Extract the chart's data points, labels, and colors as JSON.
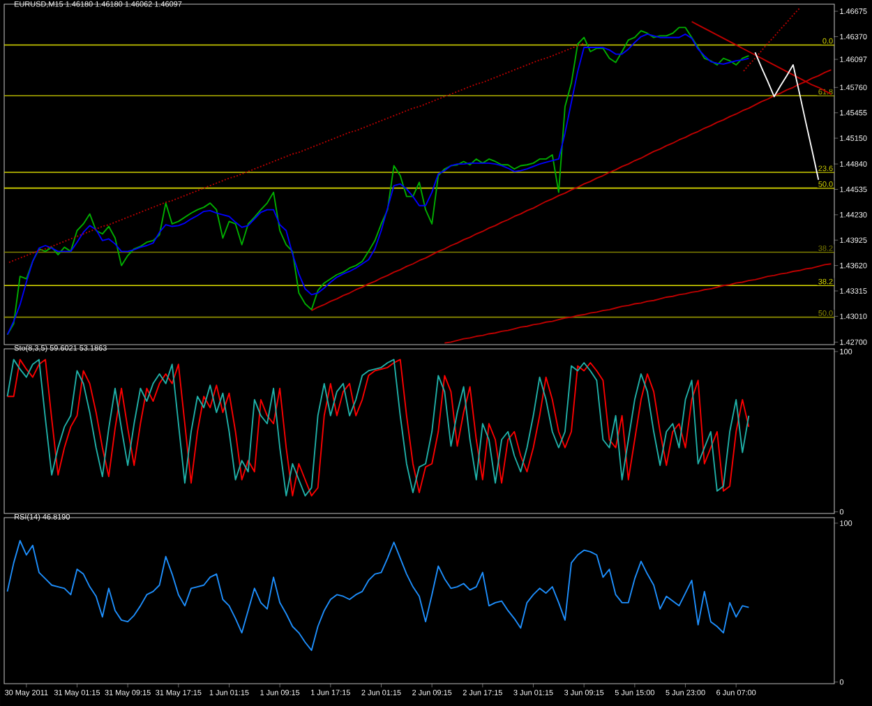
{
  "chart_data": [
    {
      "type": "line",
      "title": "EURUSD,M15  1.46180 1.46180 1.46062 1.46097",
      "tick_labels": "y",
      "categories": [
        null,
        null,
        null,
        null,
        null,
        null,
        null,
        null,
        null,
        null,
        null,
        null,
        null,
        null,
        null,
        null,
        null,
        null,
        null,
        null,
        null,
        null,
        null,
        null,
        null,
        null,
        null,
        null,
        null,
        null,
        null,
        null,
        null,
        null,
        null,
        null,
        null,
        null,
        null,
        null,
        null,
        null,
        null,
        null,
        null,
        null,
        null,
        null,
        null,
        null,
        null,
        null,
        null,
        null,
        null,
        null,
        null,
        null,
        null,
        null,
        null,
        null,
        null,
        null,
        null,
        null,
        null,
        null,
        null,
        null,
        null,
        null,
        null,
        null,
        null,
        null,
        null,
        null,
        null,
        null,
        null,
        null,
        null,
        null,
        null,
        null,
        null,
        null,
        null,
        null,
        null,
        null,
        null,
        null,
        null,
        null,
        null,
        null,
        null,
        null,
        null,
        null,
        null,
        null,
        null,
        null,
        null,
        null,
        null,
        null,
        null,
        null,
        null,
        null,
        null,
        null,
        null,
        null,
        null,
        null,
        null,
        null,
        null,
        null,
        null,
        null,
        null,
        null,
        null,
        null,
        null
      ],
      "ylim": [
        1.4267,
        1.4676
      ],
      "yticks": [
        {
          "value": 1.46675,
          "label": "1.46675"
        },
        {
          "value": 1.4637,
          "label": "1.46370"
        },
        {
          "value": 1.46097,
          "label": "1.46097"
        },
        {
          "value": 1.4576,
          "label": "1.45760"
        },
        {
          "value": 1.45455,
          "label": "1.45455"
        },
        {
          "value": 1.4515,
          "label": "1.45150"
        },
        {
          "value": 1.4484,
          "label": "1.44840"
        },
        {
          "value": 1.44535,
          "label": "1.44535"
        },
        {
          "value": 1.4423,
          "label": "1.44230"
        },
        {
          "value": 1.43925,
          "label": "1.43925"
        },
        {
          "value": 1.4362,
          "label": "1.43620"
        },
        {
          "value": 1.43315,
          "label": "1.43315"
        },
        {
          "value": 1.4301,
          "label": "1.43010"
        },
        {
          "value": 1.427,
          "label": "1.42700"
        }
      ],
      "ref_lines": [
        {
          "axis": "y",
          "value": 1.4627,
          "color": "#e0e000"
        },
        {
          "axis": "y",
          "value": 1.4566,
          "color": "#b0b000"
        },
        {
          "axis": "y",
          "value": 1.4474,
          "color": "#d0d000"
        },
        {
          "axis": "y",
          "value": 1.4455,
          "color": "#e0e000"
        },
        {
          "axis": "y",
          "value": 1.4378,
          "color": "#808000"
        },
        {
          "axis": "y",
          "value": 1.4338,
          "color": "#e0e000"
        },
        {
          "axis": "y",
          "value": 1.43,
          "color": "#909000"
        }
      ],
      "annotations": [
        {
          "text": "0.0",
          "y": 1.4627
        },
        {
          "text": "61.8",
          "y": 1.4566
        },
        {
          "text": "23.6",
          "y": 1.4474
        },
        {
          "text": "50.0",
          "y": 1.4455
        },
        {
          "text": "38.2",
          "y": 1.4378
        },
        {
          "text": "38.2",
          "y": 1.4338
        },
        {
          "text": "50.0",
          "y": 1.43
        }
      ],
      "series": [
        {
          "color": "#00b000",
          "values": [
            1.4279,
            1.4292,
            1.4349,
            1.4346,
            1.4367,
            1.4382,
            1.4379,
            1.4384,
            1.4375,
            1.4384,
            1.4379,
            1.4404,
            1.4412,
            1.4424,
            1.4404,
            1.44,
            1.4409,
            1.4395,
            1.4362,
            1.4374,
            1.4382,
            1.4385,
            1.439,
            1.4392,
            1.4399,
            1.4437,
            1.4412,
            1.4415,
            1.442,
            1.4425,
            1.4429,
            1.4432,
            1.4437,
            1.4429,
            1.4395,
            1.4415,
            1.4412,
            1.4387,
            1.4412,
            1.442,
            1.4429,
            1.4437,
            1.445,
            1.4404,
            1.4387,
            1.4379,
            1.4329,
            1.4316,
            1.4309,
            1.4332,
            1.4341,
            1.4346,
            1.4351,
            1.4354,
            1.4359,
            1.4362,
            1.4367,
            1.4379,
            1.4392,
            1.4412,
            1.4429,
            1.4482,
            1.447,
            1.4445,
            1.4445,
            1.4462,
            1.4429,
            1.4412,
            1.447,
            1.4478,
            1.4482,
            1.4483,
            1.4487,
            1.4483,
            1.449,
            1.4485,
            1.449,
            1.4487,
            1.4483,
            1.4483,
            1.4478,
            1.4482,
            1.4483,
            1.4485,
            1.449,
            1.449,
            1.4495,
            1.445,
            1.4553,
            1.4581,
            1.4628,
            1.4636,
            1.4619,
            1.4623,
            1.4623,
            1.4611,
            1.4606,
            1.4619,
            1.4633,
            1.4636,
            1.4644,
            1.4641,
            1.4636,
            1.4638,
            1.4638,
            1.4641,
            1.4648,
            1.4648,
            1.4636,
            1.4624,
            1.4611,
            1.4608,
            1.4603,
            1.4611,
            1.4608,
            1.4603,
            1.4611,
            1.4614,
            null,
            null,
            null,
            null,
            null,
            null,
            null,
            null,
            null,
            null,
            null,
            null,
            null
          ]
        },
        {
          "color": "#0000ff",
          "values": [
            1.4279,
            1.4295,
            1.4315,
            1.4342,
            1.4367,
            1.4383,
            1.4386,
            1.4383,
            1.4379,
            1.4379,
            1.4379,
            1.439,
            1.4402,
            1.441,
            1.4405,
            1.4392,
            1.4394,
            1.4388,
            1.4379,
            1.4379,
            1.4381,
            1.4384,
            1.4386,
            1.4389,
            1.4402,
            1.4411,
            1.4409,
            1.441,
            1.4413,
            1.4418,
            1.4422,
            1.4427,
            1.4428,
            1.4425,
            1.4423,
            1.4421,
            1.4414,
            1.4408,
            1.441,
            1.4418,
            1.4426,
            1.4429,
            1.4429,
            1.4411,
            1.4404,
            1.4376,
            1.4352,
            1.4334,
            1.4327,
            1.4329,
            1.4335,
            1.4342,
            1.4348,
            1.4352,
            1.4355,
            1.4359,
            1.4364,
            1.4369,
            1.4382,
            1.4404,
            1.4431,
            1.4458,
            1.446,
            1.4454,
            1.4445,
            1.4434,
            1.4434,
            1.445,
            1.4472,
            1.4476,
            1.4482,
            1.4484,
            1.4484,
            1.4485,
            1.4485,
            1.4485,
            1.4485,
            1.4484,
            1.4482,
            1.4479,
            1.4475,
            1.4476,
            1.4478,
            1.4481,
            1.4484,
            1.4486,
            1.4488,
            1.449,
            1.4521,
            1.4558,
            1.4595,
            1.4624,
            1.4624,
            1.4624,
            1.4624,
            1.4621,
            1.4616,
            1.4616,
            1.4622,
            1.463,
            1.4637,
            1.464,
            1.4638,
            1.4636,
            1.4636,
            1.4636,
            1.4636,
            1.464,
            1.4635,
            1.4622,
            1.4614,
            1.4607,
            1.4605,
            1.4604,
            1.4606,
            1.4608,
            1.4609,
            1.4611,
            null,
            null,
            null,
            null,
            null,
            null,
            null,
            null,
            null,
            null,
            null,
            null,
            null
          ]
        },
        {
          "color": "#c00000",
          "line_style": "dotted",
          "values": [
            1.4365,
            1.4368,
            1.4371,
            1.4374,
            1.4377,
            1.438,
            1.4382,
            1.4385,
            1.4388,
            1.4391,
            1.4394,
            1.4397,
            1.44,
            1.4403,
            1.4406,
            1.4409,
            1.4411,
            1.4414,
            1.4417,
            1.442,
            1.4423,
            1.4426,
            1.4429,
            1.4432,
            1.4435,
            1.4438,
            1.444,
            1.4443,
            1.4446,
            1.4449,
            1.4452,
            1.4455,
            1.4458,
            1.4461,
            1.4464,
            1.4467,
            1.4469,
            1.4472,
            1.4475,
            1.4478,
            1.4481,
            1.4484,
            1.4487,
            1.449,
            1.4493,
            1.4496,
            1.4498,
            1.4501,
            1.4504,
            1.4507,
            1.451,
            1.4513,
            1.4516,
            1.4519,
            1.4522,
            1.4524,
            1.4527,
            1.453,
            1.4533,
            1.4536,
            1.4539,
            1.4542,
            1.4545,
            1.4548,
            1.4551,
            1.4553,
            1.4556,
            1.4559,
            1.4562,
            1.4565,
            1.4568,
            1.4571,
            1.4574,
            1.4577,
            1.458,
            1.4582,
            1.4585,
            1.4588,
            1.4591,
            1.4594,
            1.4597,
            1.46,
            1.4603,
            1.4606,
            1.4609,
            1.4611,
            1.4614,
            1.4617,
            1.462,
            1.4623,
            1.4626,
            1.4629,
            null,
            null,
            null,
            null,
            null,
            null,
            null,
            null,
            null,
            null,
            null,
            null,
            null,
            null,
            null,
            null,
            null,
            null,
            null,
            null,
            null,
            null,
            null,
            null,
            null,
            null,
            null,
            null,
            null,
            null,
            null,
            null,
            null,
            null,
            null,
            null,
            null,
            null,
            null
          ]
        },
        {
          "color": "#c00000",
          "line_style": "dotted",
          "values": [
            null,
            null,
            null,
            null,
            null,
            null,
            null,
            null,
            null,
            null,
            null,
            null,
            null,
            null,
            null,
            null,
            null,
            null,
            null,
            null,
            null,
            null,
            null,
            null,
            null,
            null,
            null,
            null,
            null,
            null,
            null,
            null,
            null,
            null,
            null,
            null,
            null,
            null,
            null,
            null,
            null,
            null,
            null,
            null,
            null,
            null,
            null,
            null,
            null,
            null,
            null,
            null,
            null,
            null,
            null,
            null,
            null,
            null,
            null,
            null,
            null,
            null,
            null,
            null,
            null,
            null,
            null,
            null,
            null,
            null,
            null,
            null,
            null,
            null,
            null,
            null,
            null,
            null,
            null,
            null,
            null,
            null,
            null,
            null,
            null,
            null,
            null,
            null,
            null,
            null,
            null,
            null,
            null,
            null,
            null,
            null,
            null,
            null,
            null,
            null,
            null,
            null,
            null,
            null,
            null,
            null,
            null,
            null,
            null,
            null,
            null,
            null,
            null,
            null,
            null,
            null,
            1.4594,
            1.4603,
            1.4611,
            1.462,
            1.4629,
            1.4637,
            1.4646,
            1.4654,
            1.4663,
            1.4671,
            null,
            null,
            null,
            null,
            null
          ]
        },
        {
          "color": "#c00000",
          "values": [
            null,
            null,
            null,
            null,
            null,
            null,
            null,
            null,
            null,
            null,
            null,
            null,
            null,
            null,
            null,
            null,
            null,
            null,
            null,
            null,
            null,
            null,
            null,
            null,
            null,
            null,
            null,
            null,
            null,
            null,
            null,
            null,
            null,
            null,
            null,
            null,
            null,
            null,
            null,
            null,
            null,
            null,
            null,
            null,
            null,
            null,
            null,
            null,
            1.4308,
            1.4312,
            1.4315,
            1.4319,
            1.4322,
            1.4326,
            1.4329,
            1.4333,
            1.4336,
            1.434,
            1.4343,
            1.4347,
            1.435,
            1.4354,
            1.4357,
            1.4361,
            1.4364,
            1.4368,
            1.4371,
            1.4375,
            1.4379,
            1.4382,
            1.4386,
            1.4389,
            1.4393,
            1.4396,
            1.44,
            1.4403,
            1.4407,
            1.441,
            1.4414,
            1.4417,
            1.4421,
            1.4424,
            1.4428,
            1.4431,
            1.4435,
            1.4439,
            1.4442,
            1.4446,
            1.4449,
            1.4453,
            1.4456,
            1.446,
            1.4463,
            1.4467,
            1.447,
            1.4474,
            1.4477,
            1.4481,
            1.4484,
            1.4488,
            1.4491,
            1.4495,
            1.4499,
            1.4502,
            1.4506,
            1.4509,
            1.4513,
            1.4516,
            1.452,
            1.4523,
            1.4527,
            1.453,
            1.4534,
            1.4537,
            1.4541,
            1.4544,
            1.4548,
            1.4551,
            1.4555,
            1.4559,
            1.4562,
            1.4566,
            1.4569,
            1.4573,
            1.4576,
            1.458,
            1.4583,
            1.4587,
            1.459,
            1.4594,
            1.4597
          ]
        },
        {
          "color": "#c00000",
          "values": [
            null,
            null,
            null,
            null,
            null,
            null,
            null,
            null,
            null,
            null,
            null,
            null,
            null,
            null,
            null,
            null,
            null,
            null,
            null,
            null,
            null,
            null,
            null,
            null,
            null,
            null,
            null,
            null,
            null,
            null,
            null,
            null,
            null,
            null,
            null,
            null,
            null,
            null,
            null,
            null,
            null,
            null,
            null,
            null,
            null,
            null,
            null,
            null,
            null,
            null,
            null,
            null,
            null,
            null,
            null,
            null,
            null,
            null,
            null,
            null,
            null,
            null,
            null,
            null,
            null,
            null,
            null,
            null,
            null,
            1.4269,
            1.427,
            1.4272,
            1.4274,
            1.4275,
            1.4277,
            1.4278,
            1.428,
            1.4281,
            1.4283,
            1.4284,
            1.4286,
            1.4288,
            1.4289,
            1.4291,
            1.4292,
            1.4294,
            1.4295,
            1.4297,
            1.4299,
            1.43,
            1.4302,
            1.4303,
            1.4305,
            1.4306,
            1.4308,
            1.4309,
            1.4311,
            1.4313,
            1.4314,
            1.4316,
            1.4317,
            1.4319,
            1.432,
            1.4322,
            1.4324,
            1.4325,
            1.4327,
            1.4328,
            1.433,
            1.4331,
            1.4333,
            1.4334,
            1.4336,
            1.4338,
            1.4339,
            1.4341,
            1.4342,
            1.4344,
            1.4345,
            1.4347,
            1.4349,
            1.435,
            1.4352,
            1.4353,
            1.4355,
            1.4356,
            1.4358,
            1.4359,
            1.4361,
            1.4363,
            1.4364
          ]
        },
        {
          "color": "#c00000",
          "values": [
            null,
            null,
            null,
            null,
            null,
            null,
            null,
            null,
            null,
            null,
            null,
            null,
            null,
            null,
            null,
            null,
            null,
            null,
            null,
            null,
            null,
            null,
            null,
            null,
            null,
            null,
            null,
            null,
            null,
            null,
            null,
            null,
            null,
            null,
            null,
            null,
            null,
            null,
            null,
            null,
            null,
            null,
            null,
            null,
            null,
            null,
            null,
            null,
            null,
            null,
            null,
            null,
            null,
            null,
            null,
            null,
            null,
            null,
            null,
            null,
            null,
            null,
            null,
            null,
            null,
            null,
            null,
            null,
            null,
            null,
            null,
            null,
            null,
            null,
            null,
            null,
            null,
            null,
            null,
            null,
            null,
            null,
            null,
            null,
            null,
            null,
            null,
            null,
            null,
            null,
            null,
            null,
            null,
            null,
            null,
            null,
            null,
            null,
            null,
            null,
            null,
            null,
            null,
            null,
            null,
            null,
            null,
            null,
            1.4655,
            1.4651,
            1.4647,
            1.4643,
            1.4639,
            1.4635,
            1.4631,
            1.4627,
            1.4623,
            1.4619,
            1.4615,
            1.4611,
            1.4607,
            1.4603,
            1.4599,
            1.4595,
            1.4591,
            1.4587,
            1.4583,
            1.4579,
            1.4576,
            1.4572,
            1.4568
          ]
        },
        {
          "color": "#ffffff",
          "values": [
            null,
            null,
            null,
            null,
            null,
            null,
            null,
            null,
            null,
            null,
            null,
            null,
            null,
            null,
            null,
            null,
            null,
            null,
            null,
            null,
            null,
            null,
            null,
            null,
            null,
            null,
            null,
            null,
            null,
            null,
            null,
            null,
            null,
            null,
            null,
            null,
            null,
            null,
            null,
            null,
            null,
            null,
            null,
            null,
            null,
            null,
            null,
            null,
            null,
            null,
            null,
            null,
            null,
            null,
            null,
            null,
            null,
            null,
            null,
            null,
            null,
            null,
            null,
            null,
            null,
            null,
            null,
            null,
            null,
            null,
            null,
            null,
            null,
            null,
            null,
            null,
            null,
            null,
            null,
            null,
            null,
            null,
            null,
            null,
            null,
            null,
            null,
            null,
            null,
            null,
            null,
            null,
            null,
            null,
            null,
            null,
            null,
            null,
            null,
            null,
            null,
            null,
            null,
            null,
            null,
            null,
            null,
            null,
            null,
            null,
            null,
            null,
            null,
            null,
            null,
            null,
            null,
            null,
            1.4618,
            1.46,
            1.4583,
            1.4565,
            1.4578,
            1.459,
            1.4603,
            1.4569,
            1.4534,
            1.45,
            1.4465,
            null,
            null
          ]
        }
      ]
    },
    {
      "type": "line",
      "title": "Sto(8,3,5) 59.6021 53.1863",
      "tick_labels": "y",
      "categories": [
        null,
        null,
        null,
        null,
        null,
        null,
        null,
        null,
        null,
        null,
        null,
        null,
        null,
        null,
        null,
        null,
        null,
        null,
        null,
        null,
        null,
        null,
        null,
        null,
        null,
        null,
        null,
        null,
        null,
        null,
        null,
        null,
        null,
        null,
        null,
        null,
        null,
        null,
        null,
        null,
        null,
        null,
        null,
        null,
        null,
        null,
        null,
        null,
        null,
        null,
        null,
        null,
        null,
        null,
        null,
        null,
        null,
        null,
        null,
        null,
        null,
        null,
        null,
        null,
        null,
        null,
        null,
        null,
        null,
        null,
        null,
        null,
        null,
        null,
        null,
        null,
        null,
        null,
        null,
        null,
        null,
        null,
        null,
        null,
        null,
        null,
        null,
        null,
        null,
        null,
        null,
        null,
        null,
        null,
        null,
        null,
        null,
        null,
        null,
        null,
        null,
        null,
        null,
        null,
        null,
        null,
        null,
        null,
        null,
        null,
        null,
        null,
        null,
        null,
        null,
        null,
        null,
        null,
        null,
        null,
        null,
        null,
        null,
        null,
        null,
        null,
        null,
        null,
        null,
        null,
        null
      ],
      "ylim": [
        -1,
        101.7
      ],
      "yticks": [
        0,
        100
      ],
      "series": [
        {
          "color": "#ff0000",
          "values": [
            72,
            72,
            95,
            89,
            84,
            92,
            95,
            58,
            23,
            40,
            53,
            60,
            88,
            80,
            62,
            40,
            22,
            52,
            77,
            52,
            29,
            55,
            77,
            69,
            80,
            86,
            80,
            92,
            55,
            18,
            50,
            72,
            65,
            79,
            62,
            74,
            50,
            20,
            32,
            25,
            70,
            60,
            55,
            77,
            40,
            10,
            30,
            20,
            10,
            15,
            60,
            80,
            60,
            75,
            80,
            60,
            70,
            85,
            88,
            89,
            90,
            93,
            95,
            60,
            30,
            12,
            28,
            30,
            50,
            85,
            75,
            41,
            62,
            78,
            45,
            20,
            55,
            45,
            18,
            45,
            50,
            35,
            25,
            40,
            60,
            84,
            70,
            50,
            40,
            50,
            91,
            88,
            93,
            88,
            82,
            45,
            40,
            60,
            20,
            45,
            70,
            86,
            75,
            50,
            29,
            50,
            55,
            40,
            70,
            82,
            30,
            40,
            50,
            13,
            16,
            50,
            70,
            53,
            null,
            null,
            null,
            null,
            null,
            null,
            null,
            null,
            null,
            null,
            null,
            null,
            null
          ]
        },
        {
          "color": "#20b2aa",
          "values": [
            72,
            95,
            89,
            84,
            92,
            95,
            58,
            23,
            40,
            53,
            60,
            88,
            80,
            62,
            40,
            22,
            52,
            77,
            52,
            29,
            55,
            77,
            69,
            80,
            86,
            80,
            92,
            55,
            18,
            50,
            72,
            65,
            79,
            62,
            74,
            50,
            20,
            32,
            25,
            70,
            60,
            55,
            77,
            40,
            10,
            30,
            20,
            10,
            15,
            60,
            80,
            60,
            75,
            80,
            60,
            70,
            85,
            88,
            89,
            90,
            93,
            95,
            60,
            30,
            12,
            28,
            30,
            50,
            85,
            75,
            41,
            62,
            78,
            45,
            20,
            55,
            45,
            18,
            45,
            50,
            35,
            25,
            40,
            60,
            84,
            70,
            50,
            40,
            50,
            91,
            88,
            93,
            88,
            82,
            45,
            40,
            60,
            20,
            45,
            70,
            86,
            75,
            50,
            29,
            50,
            55,
            40,
            70,
            82,
            30,
            40,
            50,
            13,
            16,
            50,
            70,
            37,
            60,
            null,
            null,
            null,
            null,
            null,
            null,
            null,
            null,
            null,
            null,
            null,
            null,
            null
          ]
        }
      ]
    },
    {
      "type": "line",
      "title": "RSI(14) 46.8190",
      "categories": [
        null,
        null,
        null,
        "30 May 2011",
        null,
        null,
        null,
        null,
        null,
        null,
        null,
        "31 May 01:15",
        null,
        null,
        null,
        null,
        null,
        null,
        null,
        "31 May 09:15",
        null,
        null,
        null,
        null,
        null,
        null,
        null,
        "31 May 17:15",
        null,
        null,
        null,
        null,
        null,
        null,
        null,
        "1 Jun 01:15",
        null,
        null,
        null,
        null,
        null,
        null,
        null,
        "1 Jun 09:15",
        null,
        null,
        null,
        null,
        null,
        null,
        null,
        "1 Jun 17:15",
        null,
        null,
        null,
        null,
        null,
        null,
        null,
        "2 Jun 01:15",
        null,
        null,
        null,
        null,
        null,
        null,
        null,
        "2 Jun 09:15",
        null,
        null,
        null,
        null,
        null,
        null,
        null,
        "2 Jun 17:15",
        null,
        null,
        null,
        null,
        null,
        null,
        null,
        "3 Jun 01:15",
        null,
        null,
        null,
        null,
        null,
        null,
        null,
        "3 Jun 09:15",
        null,
        null,
        null,
        null,
        null,
        null,
        null,
        "5 Jun 15:00",
        null,
        null,
        null,
        null,
        null,
        null,
        null,
        "5 Jun 23:00",
        null,
        null,
        null,
        null,
        null,
        null,
        null,
        "6 Jun 07:00",
        null,
        null,
        null,
        null,
        null,
        null,
        null,
        null,
        null,
        null,
        null,
        null,
        null,
        null,
        null
      ],
      "ylim": [
        -1,
        103.5
      ],
      "yticks": [
        0,
        100
      ],
      "series": [
        {
          "color": "#1e90ff",
          "values": [
            57,
            75,
            89,
            80,
            86,
            69,
            65,
            61,
            60,
            59,
            55,
            71,
            68,
            60,
            54,
            41,
            59,
            45,
            39,
            38,
            42,
            48,
            55,
            57,
            61,
            79,
            68,
            55,
            48,
            59,
            60,
            61,
            66,
            68,
            52,
            48,
            40,
            31,
            45,
            59,
            50,
            46,
            66,
            50,
            43,
            35,
            31,
            25,
            20,
            35,
            45,
            52,
            55,
            54,
            52,
            55,
            57,
            64,
            68,
            69,
            78,
            88,
            78,
            68,
            60,
            54,
            38,
            55,
            73,
            65,
            59,
            60,
            62,
            58,
            60,
            69,
            48,
            50,
            51,
            45,
            40,
            34,
            50,
            55,
            59,
            56,
            60,
            50,
            39,
            75,
            80,
            83,
            82,
            80,
            66,
            71,
            55,
            50,
            50,
            65,
            76,
            68,
            61,
            46,
            54,
            51,
            48,
            56,
            64,
            36,
            57,
            38,
            35,
            31,
            50,
            41,
            48,
            47,
            null,
            null,
            null,
            null,
            null,
            null,
            null,
            null,
            null,
            null,
            null,
            null,
            null
          ]
        }
      ]
    }
  ]
}
